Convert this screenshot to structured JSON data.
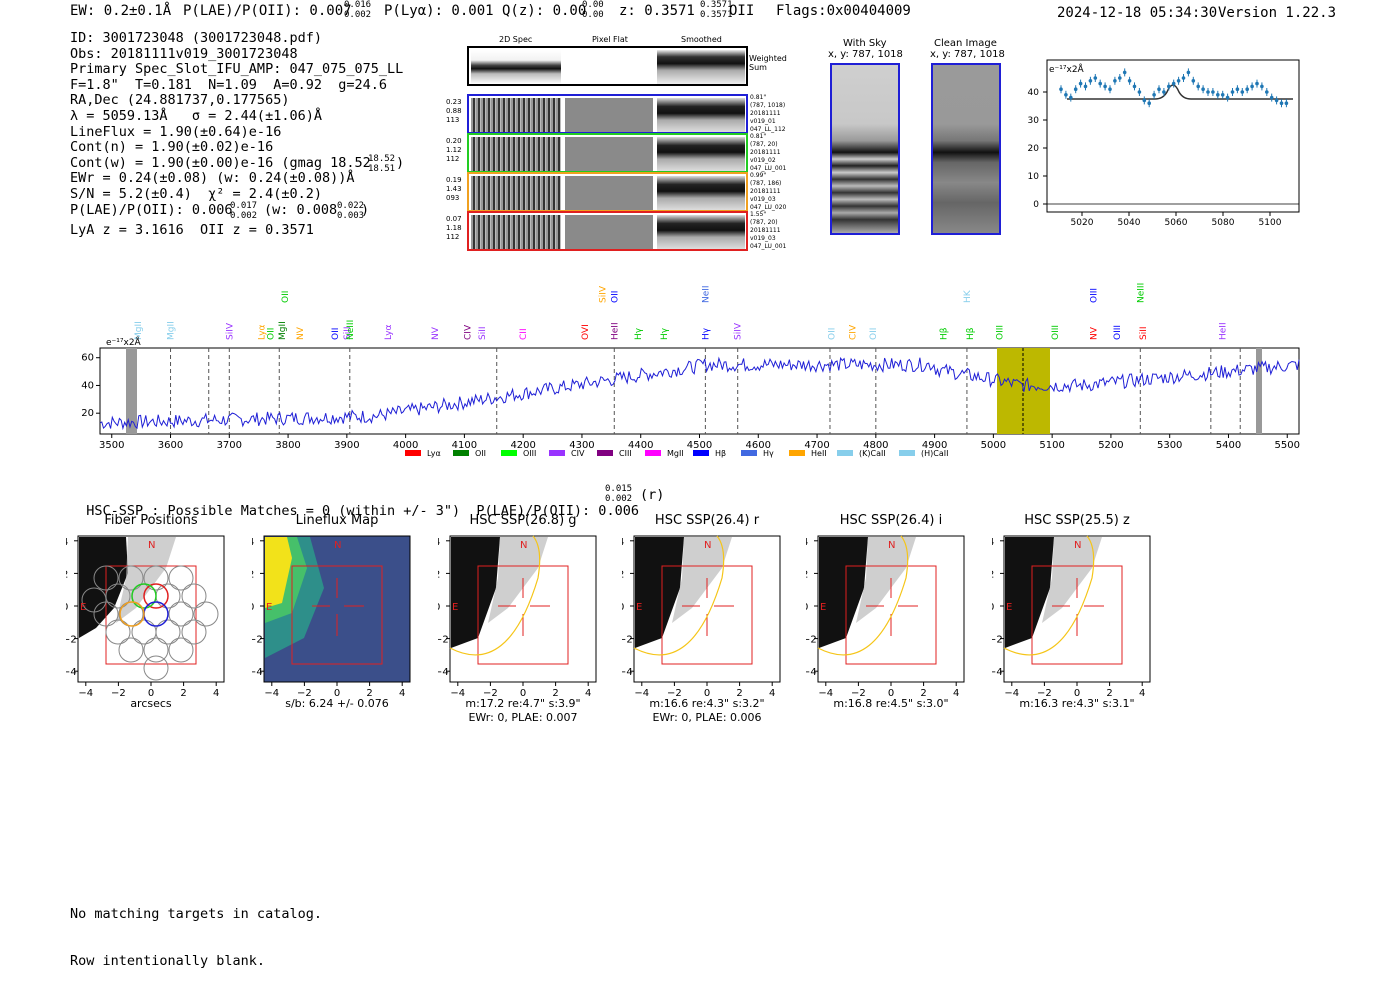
{
  "header": {
    "ew": "EW: 0.2±0.1Å",
    "plae": "P(LAE)/P(OII): 0.007",
    "plae_sup": "0.016",
    "plae_sub": "0.002",
    "plya": "P(Lyα): 0.001",
    "qz": "Q(z): 0.00",
    "qz_sup": "0.00",
    "qz_sub": "0.00",
    "z": "z: 0.3571",
    "z_sup": "0.3571",
    "z_sub": "0.3571",
    "z_line": "OII",
    "flags": "Flags:0x00404009",
    "datetime": "2024-12-18 05:34:30",
    "version": "Version 1.22.3"
  },
  "info": {
    "lines": [
      "ID: 3001723048 (3001723048.pdf)",
      "Obs: 20181111v019_3001723048",
      "Primary Spec_Slot_IFU_AMP: 047_075_075_LL",
      "F=1.8\"  T=0.181  N=1.09  A=0.92  g=24.6",
      "RA,Dec (24.881737,0.177565)",
      "λ = 5059.13Å   σ = 2.44(±1.06)Å",
      "LineFlux = 1.90(±0.64)e-16",
      "Cont(n) = 1.90(±0.02)e-16",
      "Cont(w) = 1.90(±0.00)e-16 (gmag 18.52",
      "EWr = 0.24(±0.08) (w: 0.24(±0.08))Å",
      "S/N = 5.2(±0.4)  χ² = 2.4(±0.2)",
      "P(LAE)/P(OII): 0.006",
      "LyA z = 3.1616  OII z = 0.3571"
    ],
    "gmag_sup": "18.52",
    "gmag_sub": "18.51",
    "plae_sup": "0.017",
    "plae_sub": "0.002",
    "plae_w": "(w: 0.008",
    "plae_w_sup": "0.022",
    "plae_w_sub": "0.003",
    "plae_w_close": ")"
  },
  "cutouts": {
    "col_titles": [
      "2D Spec",
      "Pixel Flat",
      "Smoothed"
    ],
    "weighted_label": "Weighted\nSum",
    "rows": [
      {
        "left": [
          "0.23",
          "0.88",
          "113"
        ],
        "right": [
          "0.81\"",
          "(787, 1018)",
          "20181111",
          "v019_01",
          "047_LL_112"
        ],
        "color": "#1f1fd6"
      },
      {
        "left": [
          "0.20",
          "1.12",
          "112"
        ],
        "right": [
          "0.81\"",
          "(787, 20)",
          "20181111",
          "v019_02",
          "047_LU_001"
        ],
        "color": "#22cc22"
      },
      {
        "left": [
          "0.19",
          "1.43",
          "093"
        ],
        "right": [
          "0.99\"",
          "(787, 186)",
          "20181111",
          "v019_03",
          "047_LU_020"
        ],
        "color": "#f0a020"
      },
      {
        "left": [
          "0.07",
          "1.18",
          "112"
        ],
        "right": [
          "1.55\"",
          "(787, 20)",
          "20181111",
          "v019_03",
          "047_LU_001"
        ],
        "color": "#e02020"
      }
    ]
  },
  "sky": {
    "with_sky_title": "With Sky",
    "with_sky_xy": "x, y: 787, 1018",
    "clean_title": "Clean Image",
    "clean_xy": "x, y: 787, 1018"
  },
  "zoom_chart": {
    "unit": "e⁻¹⁷x2Å",
    "yticks": [
      "0",
      "10",
      "20",
      "30",
      "40"
    ],
    "xticks": [
      "5020",
      "5040",
      "5060",
      "5080",
      "5100"
    ]
  },
  "full_spectrum": {
    "unit": "e⁻¹⁷x2Å",
    "yticks": [
      "20",
      "40",
      "60"
    ],
    "xticks": [
      "3500",
      "3600",
      "3700",
      "3800",
      "3900",
      "4000",
      "4100",
      "4200",
      "4300",
      "4400",
      "4500",
      "4600",
      "4700",
      "4800",
      "4900",
      "5000",
      "5100",
      "5200",
      "5300",
      "5400",
      "5500"
    ],
    "legend": [
      {
        "label": "Lyα",
        "color": "#ff0000"
      },
      {
        "label": "OII",
        "color": "#008000"
      },
      {
        "label": "OIII",
        "color": "#00ff00"
      },
      {
        "label": "CIV",
        "color": "#9933ff"
      },
      {
        "label": "CIII",
        "color": "#800080"
      },
      {
        "label": "MgII",
        "color": "#ff00ff"
      },
      {
        "label": "Hβ",
        "color": "#0000ff"
      },
      {
        "label": "Hγ",
        "color": "#4169e1"
      },
      {
        "label": "HeII",
        "color": "#ffa500"
      },
      {
        "label": "(K)CaII",
        "color": "#87ceeb"
      },
      {
        "label": "(H)CaII",
        "color": "#87ceeb"
      }
    ],
    "lines": [
      {
        "label": "MgII",
        "x": 3545,
        "color": "#87ceeb",
        "row": 1
      },
      {
        "label": "MgII",
        "x": 3600,
        "color": "#87ceeb",
        "row": 1
      },
      {
        "label": "SiIV",
        "x": 3700,
        "color": "#9933ff",
        "row": 1
      },
      {
        "label": "Lyα",
        "x": 3755,
        "color": "#ffa500",
        "row": 1
      },
      {
        "label": "OII",
        "x": 3770,
        "color": "#00cc00",
        "row": 1
      },
      {
        "label": "MgII",
        "x": 3790,
        "color": "#008000",
        "row": 1
      },
      {
        "label": "NV",
        "x": 3820,
        "color": "#ffa500",
        "row": 1
      },
      {
        "label": "OII",
        "x": 3880,
        "color": "#0000ff",
        "row": 1
      },
      {
        "label": "SiII",
        "x": 3900,
        "color": "#9933ff",
        "row": 1
      },
      {
        "label": "NeIII",
        "x": 3905,
        "color": "#00cc00",
        "row": 1
      },
      {
        "label": "Lyα",
        "x": 3970,
        "color": "#9933ff",
        "row": 1
      },
      {
        "label": "NV",
        "x": 4050,
        "color": "#9933ff",
        "row": 1
      },
      {
        "label": "CIV",
        "x": 4105,
        "color": "#800080",
        "row": 1
      },
      {
        "label": "SiII",
        "x": 4130,
        "color": "#9933ff",
        "row": 1
      },
      {
        "label": "CII",
        "x": 4200,
        "color": "#ff00ff",
        "row": 1
      },
      {
        "label": "OVI",
        "x": 4305,
        "color": "#ff0000",
        "row": 1
      },
      {
        "label": "HeII",
        "x": 4355,
        "color": "#800080",
        "row": 1
      },
      {
        "label": "Hγ",
        "x": 4395,
        "color": "#00cc00",
        "row": 1
      },
      {
        "label": "Hγ",
        "x": 4440,
        "color": "#00cc00",
        "row": 1
      },
      {
        "label": "Hγ",
        "x": 4510,
        "color": "#0000ff",
        "row": 1
      },
      {
        "label": "SiIV",
        "x": 4565,
        "color": "#9933ff",
        "row": 1
      },
      {
        "label": "OII",
        "x": 4725,
        "color": "#87ceeb",
        "row": 1
      },
      {
        "label": "CIV",
        "x": 4760,
        "color": "#ffa500",
        "row": 1
      },
      {
        "label": "OII",
        "x": 4795,
        "color": "#87ceeb",
        "row": 1
      },
      {
        "label": "Hβ",
        "x": 4915,
        "color": "#00cc00",
        "row": 1
      },
      {
        "label": "Hβ",
        "x": 4960,
        "color": "#00cc00",
        "row": 1
      },
      {
        "label": "OIII",
        "x": 5010,
        "color": "#00cc00",
        "row": 1
      },
      {
        "label": "OIII",
        "x": 5105,
        "color": "#00cc00",
        "row": 1
      },
      {
        "label": "NV",
        "x": 5170,
        "color": "#ff0000",
        "row": 1
      },
      {
        "label": "OIII",
        "x": 5210,
        "color": "#0000ff",
        "row": 1
      },
      {
        "label": "SiII",
        "x": 5255,
        "color": "#ff0000",
        "row": 1
      },
      {
        "label": "HeII",
        "x": 5390,
        "color": "#9933ff",
        "row": 1
      },
      {
        "label": "SiIV",
        "x": 4335,
        "color": "#ffa500",
        "row": 2
      },
      {
        "label": "OII",
        "x": 4355,
        "color": "#0000ff",
        "row": 2
      },
      {
        "label": "OII",
        "x": 3795,
        "color": "#00cc00",
        "row": 2
      },
      {
        "label": "NeII",
        "x": 4510,
        "color": "#4169e1",
        "row": 2
      },
      {
        "label": "HK",
        "x": 4955,
        "color": "#87ceeb",
        "row": 2
      },
      {
        "label": "OIII",
        "x": 5170,
        "color": "#0000ff",
        "row": 2
      },
      {
        "label": "NeIII",
        "x": 5250,
        "color": "#00cc00",
        "row": 2
      }
    ]
  },
  "hsc": {
    "summary": "HSC-SSP : Possible Matches = 0 (within +/- 3\")  P(LAE)/P(OII): 0.006",
    "summary_sup": "0.015",
    "summary_sub": "0.002",
    "summary_band": "(r)",
    "panels": [
      {
        "title": "Fiber Positions",
        "label1": "arcsecs",
        "label2": ""
      },
      {
        "title": "Lineflux Map",
        "label1": "s/b: 6.24 +/- 0.076",
        "label2": ""
      },
      {
        "title": "HSC SSP(26.8) g",
        "label1": "m:17.2  re:4.7\"  s:3.9\"",
        "label2": "EWr: 0, PLAE: 0.007"
      },
      {
        "title": "HSC SSP(26.4) r",
        "label1": "m:16.6  re:4.3\"  s:3.2\"",
        "label2": "EWr: 0, PLAE: 0.006"
      },
      {
        "title": "HSC SSP(26.4) i",
        "label1": "m:16.8  re:4.5\"  s:3.0\"",
        "label2": ""
      },
      {
        "title": "HSC SSP(25.5) z",
        "label1": "m:16.3  re:4.3\"  s:3.1\"",
        "label2": ""
      }
    ],
    "tick_labels": [
      "−4",
      "−2",
      "0",
      "2",
      "4"
    ],
    "compass_n": "N",
    "compass_e": "E"
  },
  "footer": {
    "line1": "No matching targets in catalog.",
    "line2": "Row intentionally blank."
  }
}
